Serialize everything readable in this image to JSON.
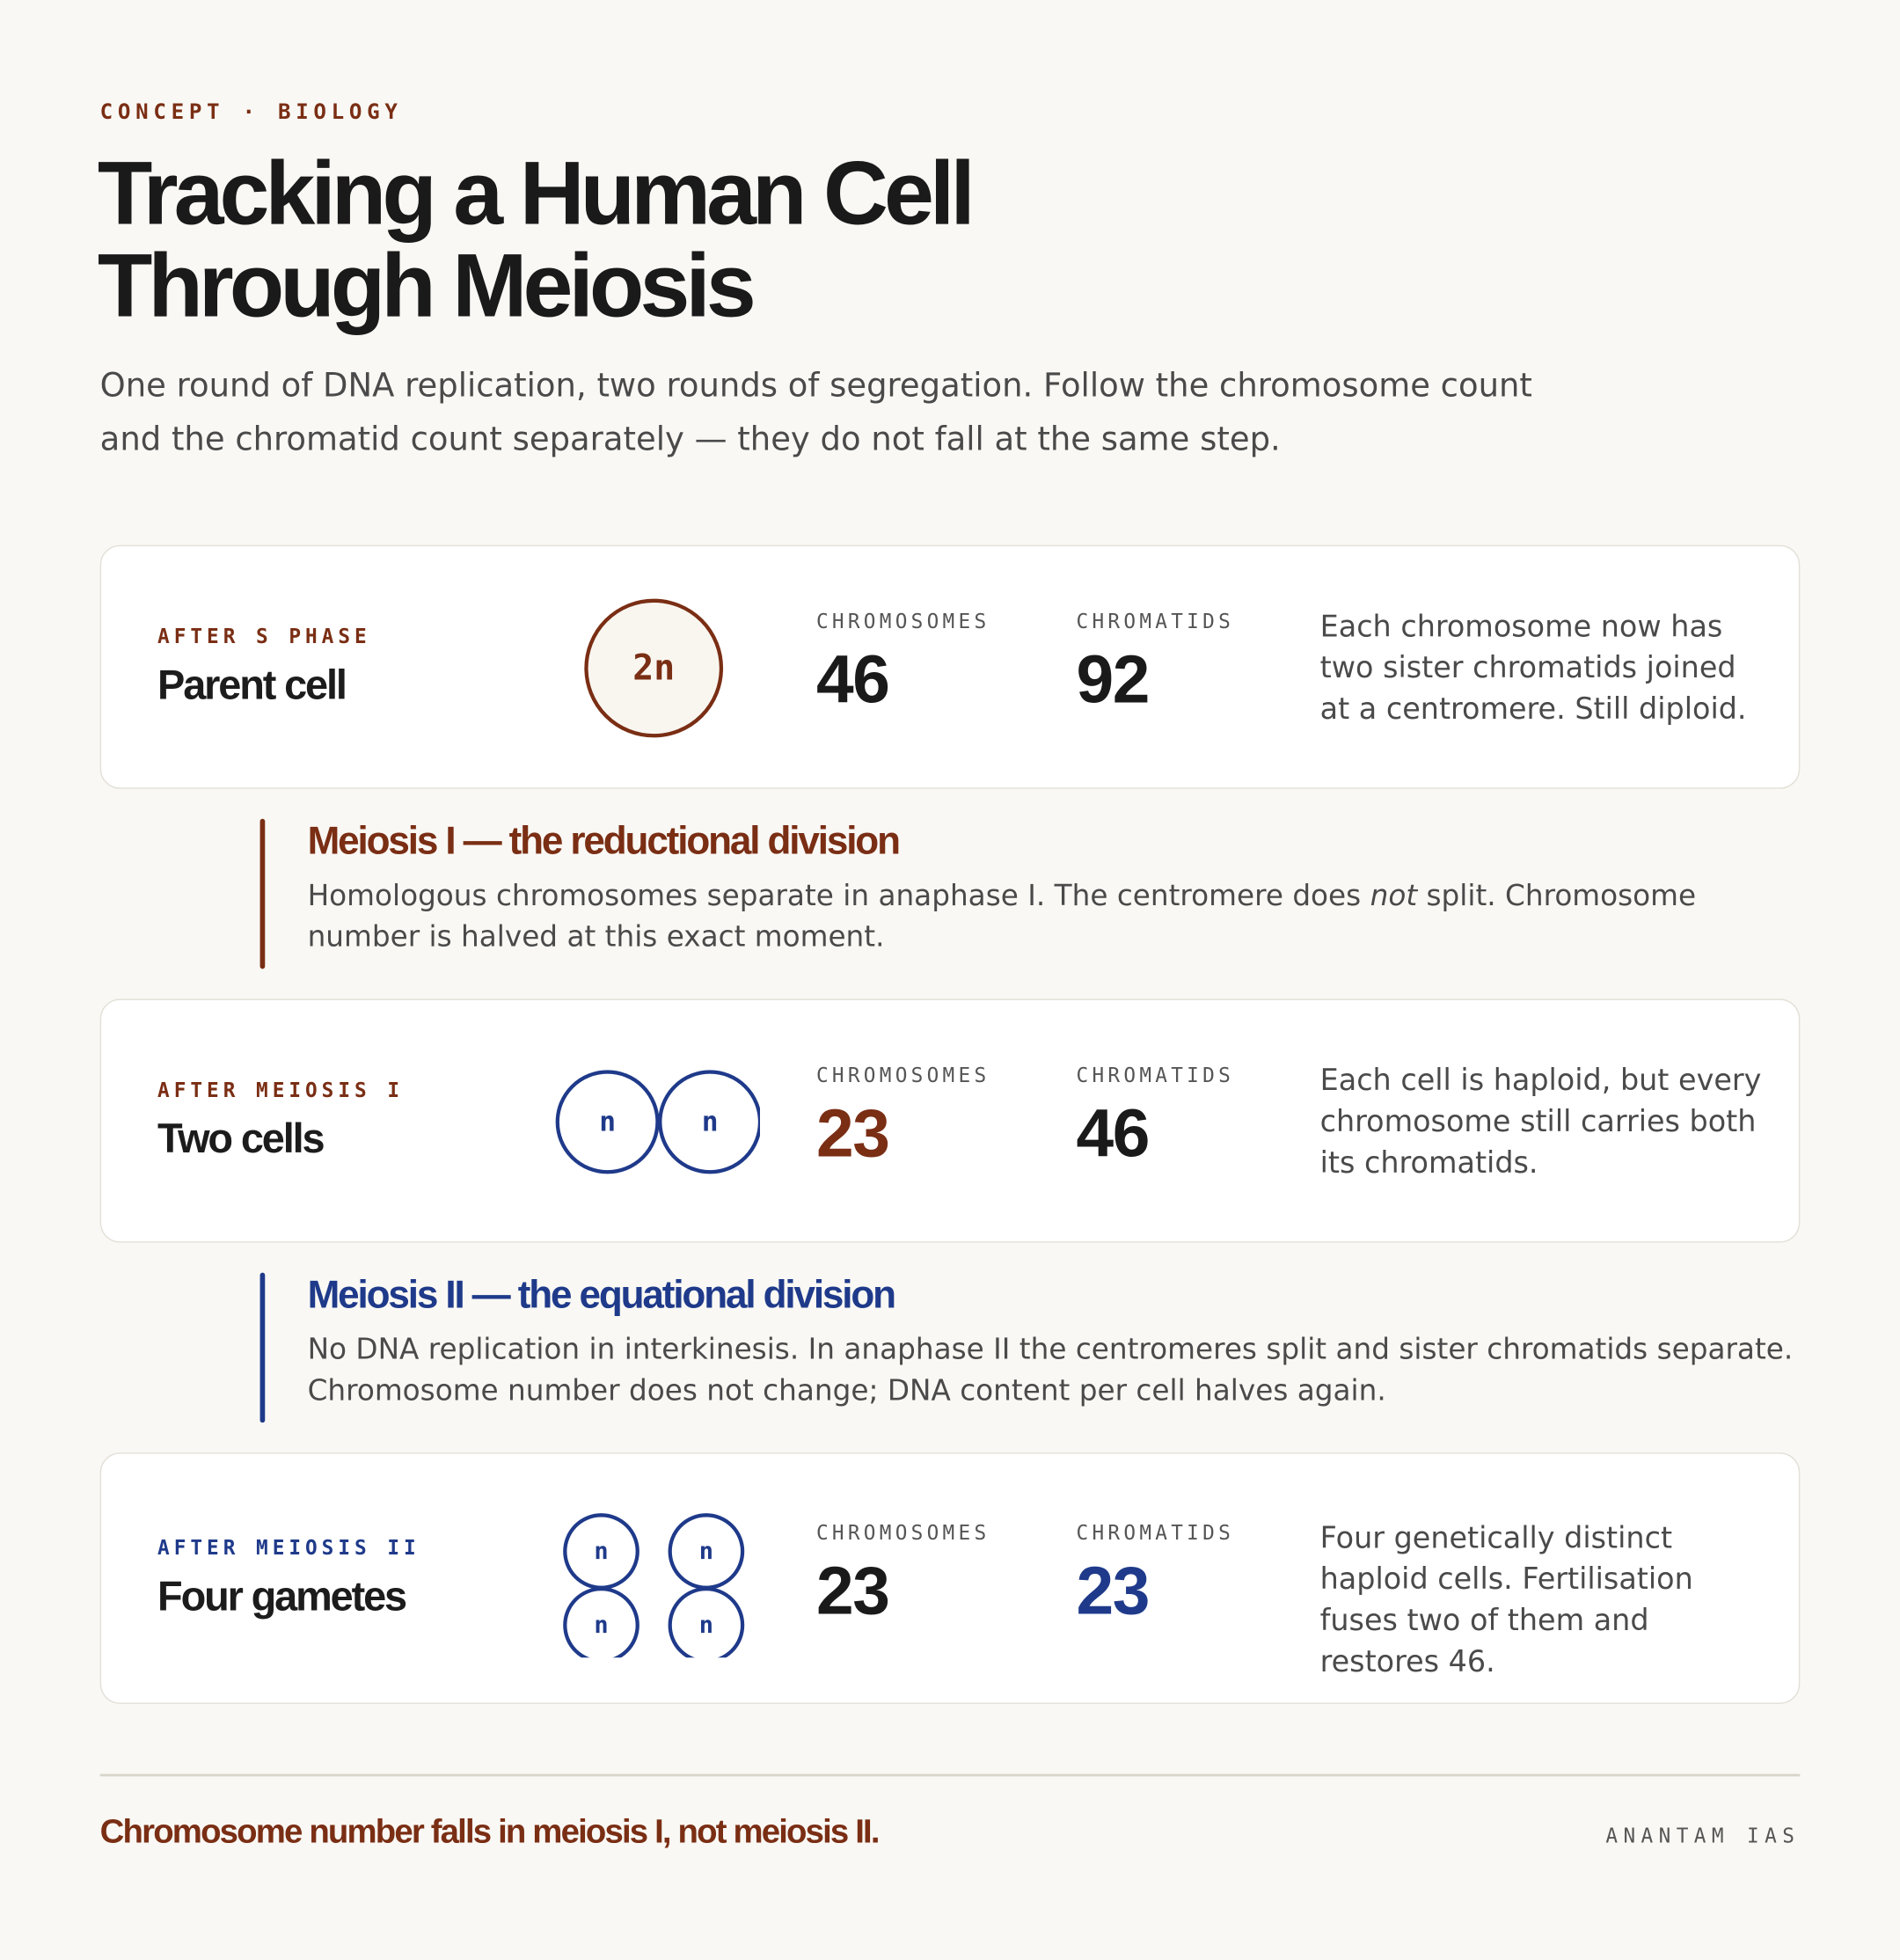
{
  "header": {
    "eyebrow": "CONCEPT · BIOLOGY",
    "title": "Tracking a Human Cell Through Meiosis",
    "intro": "One round of DNA replication, two rounds of segregation. Follow the chromosome count and the chromatid count separately — they do not fall at the same step."
  },
  "stages": [
    {
      "label": "AFTER S PHASE",
      "name": "Parent cell",
      "cells": [
        "2n"
      ],
      "chromosomes_label": "CHROMOSOMES",
      "chromosomes": 46,
      "chromatids_label": "CHROMATIDS",
      "chromatids": 92,
      "note": "Each chromosome now has two sister chromatids joined at a centromere. Still diploid."
    },
    {
      "label": "AFTER MEIOSIS I",
      "name": "Two cells",
      "cells": [
        "n",
        "n"
      ],
      "chromosomes_label": "CHROMOSOMES",
      "chromosomes": 23,
      "chromatids_label": "CHROMATIDS",
      "chromatids": 46,
      "note": "Each cell is haploid, but every chromosome still carries both its chromatids."
    },
    {
      "label": "AFTER MEIOSIS II",
      "name": "Four gametes",
      "cells": [
        "n",
        "n",
        "n",
        "n"
      ],
      "chromosomes_label": "CHROMOSOMES",
      "chromosomes": 23,
      "chromatids_label": "CHROMATIDS",
      "chromatids": 23,
      "note": "Four genetically distinct haploid cells. Fertilisation fuses two of them and restores 46."
    }
  ],
  "divisions": [
    {
      "title": "Meiosis I — the reductional division",
      "text_before": "Homologous chromosomes separate in anaphase I. The centromere does ",
      "emphasis": "not",
      "text_after": " split. Chromosome number is halved at this exact moment."
    },
    {
      "title": "Meiosis II — the equational division",
      "text_before": "No DNA replication in interkinesis. In anaphase II the centromeres split and sister chromatids separate. Chromosome number does not change; DNA content per cell halves again."
    }
  ],
  "footer": {
    "takeaway": "Chromosome number falls in meiosis I, not meiosis II.",
    "brand": "ANANTAM IAS"
  }
}
